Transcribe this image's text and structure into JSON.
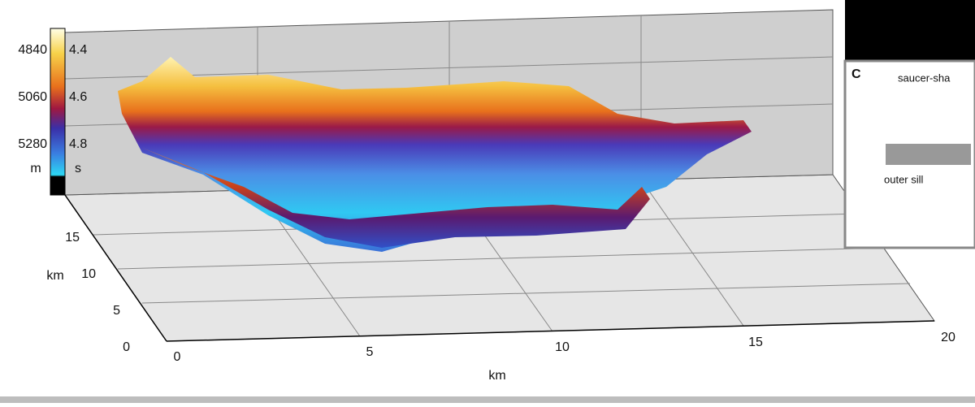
{
  "colorbar": {
    "depth_labels": [
      "4840",
      "5060",
      "5280"
    ],
    "depth_unit": "m",
    "time_labels": [
      "4.4",
      "4.6",
      "4.8"
    ],
    "time_unit": "s"
  },
  "y_axis": {
    "ticks": [
      "0",
      "5",
      "10",
      "15"
    ],
    "label": "km"
  },
  "x_axis": {
    "ticks": [
      "0",
      "5",
      "10",
      "15",
      "20"
    ],
    "label": "km"
  },
  "inset": {
    "panel": "C",
    "caption": "saucer-sha",
    "label": "outer sill"
  }
}
